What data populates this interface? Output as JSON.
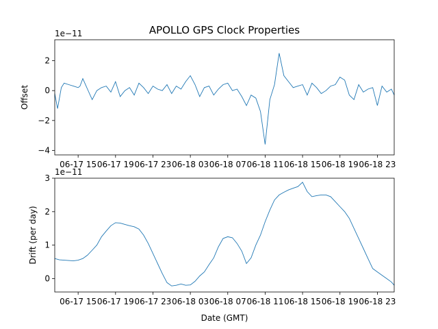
{
  "title": "APOLLO GPS Clock Properties",
  "series_color": "#1f77b4",
  "xlabel": "Date (GMT)",
  "chart_data": [
    {
      "type": "line",
      "ylabel": "Offset",
      "yscale_label": "1e−11",
      "ylim": [
        -4.3,
        3.4
      ],
      "yticks": [
        -4,
        -2,
        0,
        2
      ],
      "yticklabels": [
        "−4",
        "−2",
        "0",
        "2"
      ],
      "xlim": [
        12.5,
        48.8
      ],
      "xticks": [
        15,
        19,
        23,
        27,
        31,
        35,
        39,
        43,
        47
      ],
      "xticklabels": [
        "06-17 15",
        "06-17 19",
        "06-17 23",
        "06-18 03",
        "06-18 07",
        "06-18 11",
        "06-18 15",
        "06-18 19",
        "06-18 23"
      ],
      "series": [
        {
          "x": [
            12.5,
            12.8,
            13.2,
            13.5,
            14.0,
            14.5,
            15.0,
            15.2,
            15.5,
            16.0,
            16.5,
            17.0,
            17.5,
            18.0,
            18.5,
            19.0,
            19.5,
            20.0,
            20.5,
            21.0,
            21.5,
            22.0,
            22.5,
            23.0,
            23.5,
            24.0,
            24.5,
            25.0,
            25.5,
            26.0,
            26.5,
            27.0,
            27.5,
            28.0,
            28.5,
            29.0,
            29.5,
            30.0,
            30.5,
            31.0,
            31.5,
            32.0,
            32.5,
            33.0,
            33.5,
            34.0,
            34.5,
            35.0,
            35.5,
            36.0,
            36.5,
            37.0,
            37.5,
            38.0,
            38.5,
            39.0,
            39.5,
            40.0,
            40.5,
            41.0,
            41.5,
            42.0,
            42.5,
            43.0,
            43.5,
            44.0,
            44.5,
            45.0,
            45.5,
            46.0,
            46.5,
            47.0,
            47.5,
            48.0,
            48.5,
            48.8
          ],
          "y": [
            -0.2,
            -1.2,
            0.2,
            0.5,
            0.4,
            0.3,
            0.2,
            0.3,
            0.8,
            0.1,
            -0.6,
            0.0,
            0.2,
            0.3,
            -0.1,
            0.6,
            -0.4,
            0.0,
            0.2,
            -0.3,
            0.5,
            0.2,
            -0.2,
            0.3,
            0.1,
            0.0,
            0.4,
            -0.2,
            0.3,
            0.1,
            0.6,
            1.0,
            0.4,
            -0.4,
            0.2,
            0.3,
            -0.3,
            0.1,
            0.4,
            0.5,
            0.0,
            0.1,
            -0.4,
            -1.0,
            -0.3,
            -0.5,
            -1.4,
            -3.6,
            -0.6,
            0.4,
            2.5,
            1.0,
            0.6,
            0.2,
            0.3,
            0.4,
            -0.3,
            0.5,
            0.2,
            -0.2,
            0.0,
            0.3,
            0.4,
            0.9,
            0.7,
            -0.3,
            -0.6,
            0.4,
            -0.1,
            0.1,
            0.2,
            -1.0,
            0.3,
            -0.1,
            0.1,
            -0.3
          ]
        }
      ]
    },
    {
      "type": "line",
      "ylabel": "Drift (per day)",
      "yscale_label": "1e−11",
      "ylim": [
        -0.4,
        3.0
      ],
      "yticks": [
        0,
        1,
        2,
        3
      ],
      "yticklabels": [
        "0",
        "1",
        "2",
        "3"
      ],
      "xlim": [
        12.5,
        48.8
      ],
      "xticks": [
        15,
        19,
        23,
        27,
        31,
        35,
        39,
        43,
        47
      ],
      "xticklabels": [
        "06-17 15",
        "06-17 19",
        "06-17 23",
        "06-18 03",
        "06-18 07",
        "06-18 11",
        "06-18 15",
        "06-18 19",
        "06-18 23"
      ],
      "series": [
        {
          "x": [
            12.5,
            13.0,
            13.5,
            14.0,
            14.5,
            15.0,
            15.5,
            16.0,
            16.5,
            17.0,
            17.5,
            18.0,
            18.5,
            19.0,
            19.5,
            20.0,
            20.5,
            21.0,
            21.5,
            22.0,
            22.5,
            23.0,
            23.5,
            24.0,
            24.5,
            25.0,
            25.5,
            26.0,
            26.5,
            27.0,
            27.5,
            28.0,
            28.5,
            29.0,
            29.5,
            30.0,
            30.5,
            31.0,
            31.5,
            32.0,
            32.5,
            33.0,
            33.5,
            34.0,
            34.5,
            35.0,
            35.5,
            36.0,
            36.5,
            37.0,
            37.5,
            38.0,
            38.5,
            39.0,
            39.5,
            40.0,
            40.5,
            41.0,
            41.5,
            42.0,
            42.5,
            43.0,
            43.5,
            44.0,
            44.5,
            45.0,
            45.5,
            46.0,
            46.5,
            47.0,
            47.5,
            48.0,
            48.5,
            48.8
          ],
          "y": [
            0.6,
            0.56,
            0.55,
            0.54,
            0.53,
            0.55,
            0.6,
            0.7,
            0.85,
            1.0,
            1.25,
            1.42,
            1.58,
            1.67,
            1.66,
            1.62,
            1.58,
            1.55,
            1.48,
            1.3,
            1.05,
            0.75,
            0.45,
            0.15,
            -0.12,
            -0.22,
            -0.2,
            -0.16,
            -0.2,
            -0.19,
            -0.08,
            0.08,
            0.2,
            0.42,
            0.62,
            0.95,
            1.2,
            1.25,
            1.22,
            1.05,
            0.82,
            0.45,
            0.62,
            1.0,
            1.3,
            1.7,
            2.05,
            2.35,
            2.5,
            2.58,
            2.65,
            2.7,
            2.75,
            2.88,
            2.6,
            2.45,
            2.48,
            2.5,
            2.5,
            2.45,
            2.3,
            2.15,
            2.0,
            1.8,
            1.5,
            1.2,
            0.9,
            0.6,
            0.3,
            0.2,
            0.1,
            0.0,
            -0.1,
            -0.2
          ]
        }
      ]
    }
  ]
}
